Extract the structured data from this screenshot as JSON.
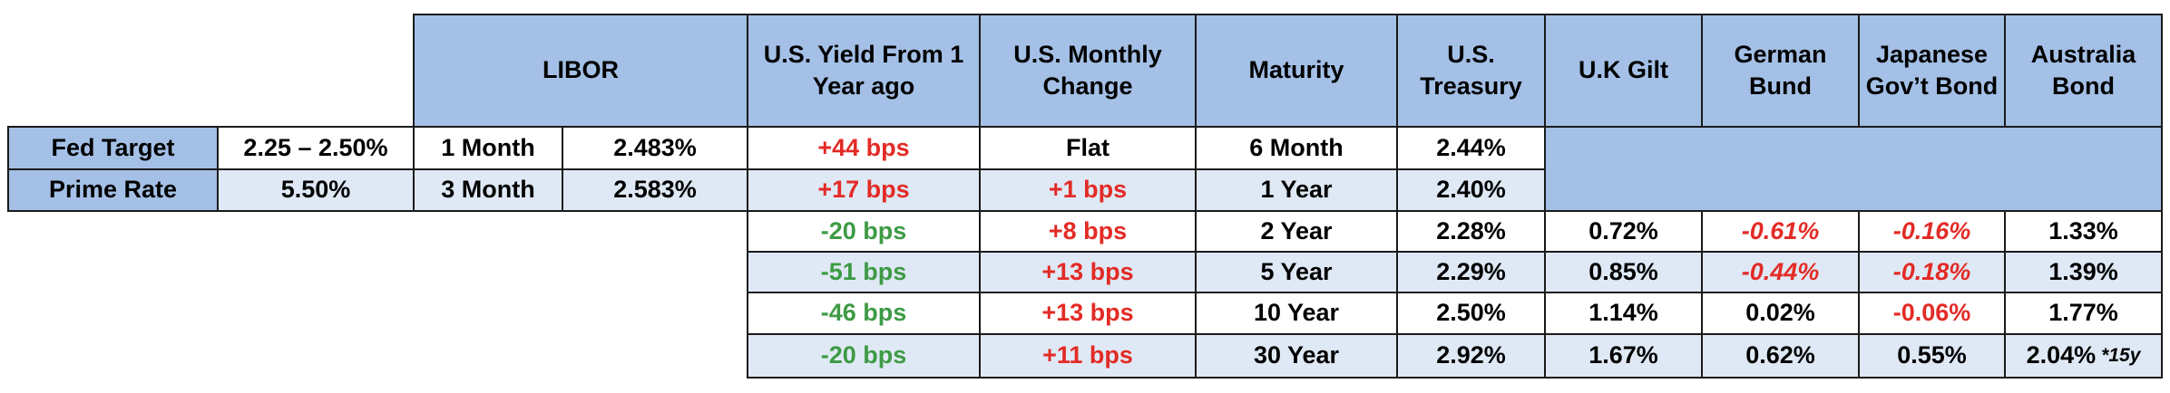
{
  "headers": {
    "libor": "LIBOR",
    "yield_1y": "U.S. Yield From 1 Year ago",
    "monthly": "U.S. Monthly Change",
    "maturity": "Maturity",
    "treasury": "U.S. Treasury",
    "gilt": "U.K Gilt",
    "bund": "German Bund",
    "jgb": "Japanese Gov’t Bond",
    "aus": "Australia Bond"
  },
  "rates": [
    {
      "label": "Fed Target",
      "value": "2.25 – 2.50%",
      "libor_term": "1 Month",
      "libor_rate": "2.483%"
    },
    {
      "label": "Prime Rate",
      "value": "5.50%",
      "libor_term": "3 Month",
      "libor_rate": "2.583%"
    }
  ],
  "rows": [
    {
      "yield_1y": "+44 bps",
      "monthly": "Flat",
      "maturity": "6 Month",
      "treasury": "2.44%"
    },
    {
      "yield_1y": "+17 bps",
      "monthly": "+1 bps",
      "maturity": "1 Year",
      "treasury": "2.40%"
    },
    {
      "yield_1y": "-20 bps",
      "monthly": "+8 bps",
      "maturity": "2 Year",
      "treasury": "2.28%",
      "gilt": "0.72%",
      "bund": "-0.61%",
      "jgb": "-0.16%",
      "aus": "1.33%"
    },
    {
      "yield_1y": "-51 bps",
      "monthly": "+13 bps",
      "maturity": "5 Year",
      "treasury": "2.29%",
      "gilt": "0.85%",
      "bund": "-0.44%",
      "jgb": "-0.18%",
      "aus": "1.39%"
    },
    {
      "yield_1y": "-46 bps",
      "monthly": "+13 bps",
      "maturity": "10 Year",
      "treasury": "2.50%",
      "gilt": "1.14%",
      "bund": "0.02%",
      "jgb": "-0.06%",
      "aus": "1.77%"
    },
    {
      "yield_1y": "-20 bps",
      "monthly": "+11 bps",
      "maturity": "30 Year",
      "treasury": "2.92%",
      "gilt": "1.67%",
      "bund": "0.62%",
      "jgb": "0.55%",
      "aus": "2.04%",
      "aus_note": "*15y"
    }
  ],
  "colors": {
    "header_bg": "#a4c0e6",
    "light_bg": "#dfe9f5",
    "positive_red": "#e32b26",
    "negative_green": "#3e9b45"
  }
}
